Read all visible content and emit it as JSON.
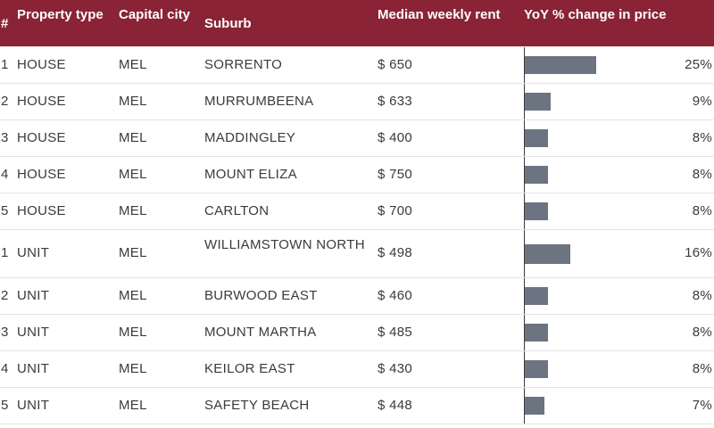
{
  "chart_data": {
    "type": "table",
    "columns": [
      "#",
      "Property type",
      "Capital city",
      "Suburb",
      "Median weekly rent",
      "YoY % change in price"
    ],
    "rows": [
      {
        "rank": "1",
        "type": "HOUSE",
        "city": "MEL",
        "suburb": "SORRENTO",
        "rent": "$ 650",
        "yoy": 25,
        "yoy_label": "25%"
      },
      {
        "rank": "2",
        "type": "HOUSE",
        "city": "MEL",
        "suburb": "MURRUMBEENA",
        "rent": "$ 633",
        "yoy": 9,
        "yoy_label": "9%"
      },
      {
        "rank": "3",
        "type": "HOUSE",
        "city": "MEL",
        "suburb": "MADDINGLEY",
        "rent": "$ 400",
        "yoy": 8,
        "yoy_label": "8%"
      },
      {
        "rank": "4",
        "type": "HOUSE",
        "city": "MEL",
        "suburb": "MOUNT ELIZA",
        "rent": "$ 750",
        "yoy": 8,
        "yoy_label": "8%"
      },
      {
        "rank": "5",
        "type": "HOUSE",
        "city": "MEL",
        "suburb": "CARLTON",
        "rent": "$ 700",
        "yoy": 8,
        "yoy_label": "8%"
      },
      {
        "rank": "1",
        "type": "UNIT",
        "city": "MEL",
        "suburb": "WILLIAMSTOWN NORTH",
        "rent": "$ 498",
        "yoy": 16,
        "yoy_label": "16%"
      },
      {
        "rank": "2",
        "type": "UNIT",
        "city": "MEL",
        "suburb": "BURWOOD EAST",
        "rent": "$ 460",
        "yoy": 8,
        "yoy_label": "8%"
      },
      {
        "rank": "3",
        "type": "UNIT",
        "city": "MEL",
        "suburb": "MOUNT MARTHA",
        "rent": "$ 485",
        "yoy": 8,
        "yoy_label": "8%"
      },
      {
        "rank": "4",
        "type": "UNIT",
        "city": "MEL",
        "suburb": "KEILOR EAST",
        "rent": "$ 430",
        "yoy": 8,
        "yoy_label": "8%"
      },
      {
        "rank": "5",
        "type": "UNIT",
        "city": "MEL",
        "suburb": "SAFETY BEACH",
        "rent": "$ 448",
        "yoy": 7,
        "yoy_label": "7%"
      }
    ],
    "yoy_max": 25
  },
  "colors": {
    "header_bg": "#8a2335",
    "bar": "#6b7480"
  }
}
